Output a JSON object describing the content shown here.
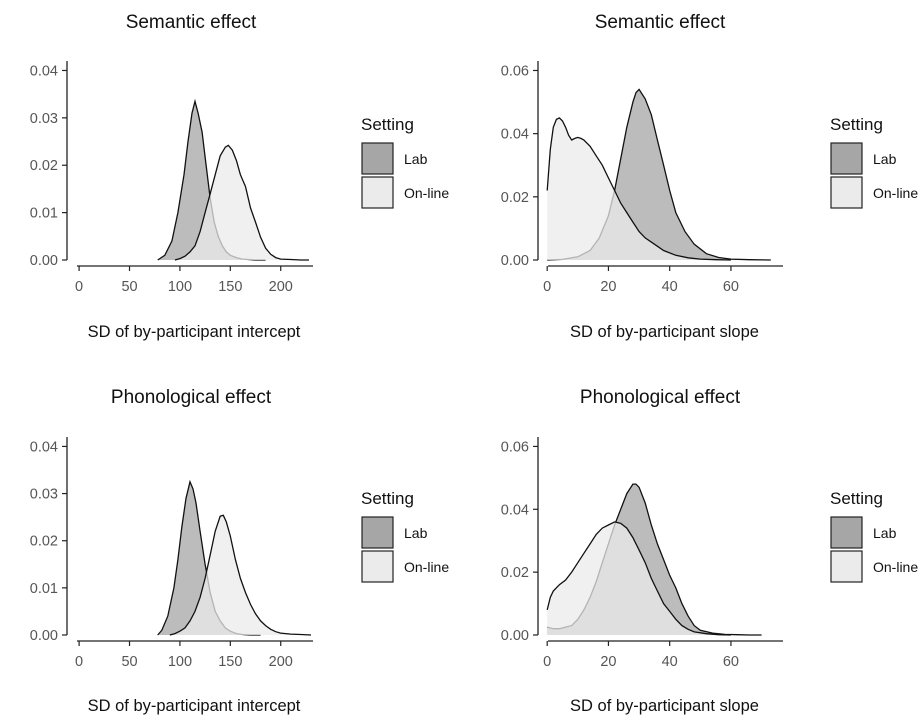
{
  "chart_data": [
    {
      "type": "area",
      "title": "Semantic effect",
      "xlabel": "SD of by-participant intercept",
      "ylabel": "",
      "xlim": [
        -12,
        232
      ],
      "ylim": [
        0,
        0.042
      ],
      "xticks": [
        0,
        50,
        100,
        150,
        200
      ],
      "yticks": [
        0,
        0.01,
        0.02,
        0.03,
        0.04
      ],
      "ytick_labels": [
        "0.00",
        "0.01",
        "0.02",
        "0.03",
        "0.04"
      ],
      "legend": {
        "title": "Setting",
        "placement": "right"
      },
      "series": [
        {
          "name": "Lab",
          "color": "#a6a6a6",
          "x": [
            78,
            85,
            92,
            98,
            104,
            108,
            112,
            115,
            118,
            122,
            126,
            130,
            134,
            138,
            142,
            146,
            150,
            156,
            162,
            168,
            175,
            185
          ],
          "y": [
            0.0,
            0.001,
            0.004,
            0.01,
            0.018,
            0.025,
            0.031,
            0.0335,
            0.031,
            0.027,
            0.02,
            0.013,
            0.008,
            0.005,
            0.003,
            0.0017,
            0.001,
            0.0005,
            0.0002,
            0.0001,
            0.0,
            0.0
          ]
        },
        {
          "name": "On-line",
          "color": "#ebebeb",
          "x": [
            95,
            100,
            105,
            110,
            115,
            120,
            125,
            130,
            135,
            140,
            145,
            148,
            152,
            156,
            160,
            165,
            170,
            175,
            180,
            185,
            190,
            195,
            200,
            210,
            220,
            228
          ],
          "y": [
            0.0,
            0.0003,
            0.0008,
            0.0017,
            0.003,
            0.006,
            0.01,
            0.014,
            0.018,
            0.022,
            0.0238,
            0.0242,
            0.0232,
            0.021,
            0.018,
            0.0155,
            0.011,
            0.008,
            0.0048,
            0.0025,
            0.0012,
            0.0005,
            0.0002,
            0.0001,
            0.0,
            0.0
          ]
        }
      ]
    },
    {
      "type": "area",
      "title": "Semantic effect",
      "xlabel": "SD of by-participant slope",
      "ylabel": "",
      "xlim": [
        -3,
        77
      ],
      "ylim": [
        0,
        0.063
      ],
      "xticks": [
        0,
        20,
        40,
        60
      ],
      "yticks": [
        0,
        0.02,
        0.04,
        0.06
      ],
      "ytick_labels": [
        "0.00",
        "0.02",
        "0.04",
        "0.06"
      ],
      "legend": {
        "title": "Setting",
        "placement": "right"
      },
      "series": [
        {
          "name": "Lab",
          "color": "#a6a6a6",
          "x": [
            0,
            5,
            10,
            14,
            17,
            20,
            22,
            24,
            26,
            28,
            29,
            30,
            32,
            34,
            36,
            38,
            40,
            42,
            45,
            48,
            52,
            56,
            60,
            66,
            73
          ],
          "y": [
            0.0,
            0.0002,
            0.001,
            0.003,
            0.007,
            0.014,
            0.022,
            0.032,
            0.042,
            0.05,
            0.053,
            0.054,
            0.051,
            0.046,
            0.038,
            0.03,
            0.022,
            0.015,
            0.009,
            0.005,
            0.002,
            0.0008,
            0.0003,
            0.0001,
            0.0
          ]
        },
        {
          "name": "On-line",
          "color": "#ebebeb",
          "x": [
            0,
            1,
            2,
            3,
            4,
            5,
            6,
            7,
            8,
            9,
            10,
            11,
            12,
            14,
            16,
            18,
            20,
            22,
            24,
            26,
            28,
            30,
            32,
            35,
            38,
            42,
            46,
            50,
            55,
            60
          ],
          "y": [
            0.022,
            0.035,
            0.042,
            0.0445,
            0.045,
            0.044,
            0.042,
            0.0395,
            0.038,
            0.0385,
            0.0388,
            0.0385,
            0.038,
            0.036,
            0.033,
            0.03,
            0.026,
            0.022,
            0.018,
            0.015,
            0.012,
            0.009,
            0.007,
            0.005,
            0.003,
            0.0015,
            0.0007,
            0.0003,
            0.0001,
            0.0
          ]
        }
      ]
    },
    {
      "type": "area",
      "title": "Phonological effect",
      "xlabel": "SD of by-participant intercept",
      "ylabel": "",
      "xlim": [
        -12,
        232
      ],
      "ylim": [
        0,
        0.042
      ],
      "xticks": [
        0,
        50,
        100,
        150,
        200
      ],
      "yticks": [
        0,
        0.01,
        0.02,
        0.03,
        0.04
      ],
      "ytick_labels": [
        "0.00",
        "0.01",
        "0.02",
        "0.03",
        "0.04"
      ],
      "legend": {
        "title": "Setting",
        "placement": "right"
      },
      "series": [
        {
          "name": "Lab",
          "color": "#a6a6a6",
          "x": [
            78,
            82,
            88,
            94,
            98,
            102,
            106,
            110,
            113,
            116,
            120,
            125,
            130,
            135,
            140,
            145,
            150,
            156,
            162,
            170,
            180
          ],
          "y": [
            0.0,
            0.001,
            0.004,
            0.01,
            0.016,
            0.023,
            0.029,
            0.0325,
            0.031,
            0.028,
            0.022,
            0.015,
            0.009,
            0.005,
            0.003,
            0.0015,
            0.0008,
            0.0003,
            0.0001,
            0.0,
            0.0
          ]
        },
        {
          "name": "On-line",
          "color": "#ebebeb",
          "x": [
            90,
            95,
            100,
            105,
            110,
            115,
            120,
            125,
            130,
            135,
            140,
            143,
            146,
            150,
            155,
            160,
            165,
            170,
            175,
            180,
            185,
            190,
            195,
            200,
            210,
            220,
            230
          ],
          "y": [
            0.0,
            0.0003,
            0.0008,
            0.0015,
            0.003,
            0.005,
            0.008,
            0.012,
            0.017,
            0.022,
            0.0252,
            0.0254,
            0.024,
            0.021,
            0.016,
            0.012,
            0.009,
            0.0065,
            0.0045,
            0.003,
            0.002,
            0.0012,
            0.0007,
            0.0004,
            0.0002,
            0.0001,
            0.0
          ]
        }
      ]
    },
    {
      "type": "area",
      "title": "Phonological effect",
      "xlabel": "SD of by-participant slope",
      "ylabel": "",
      "xlim": [
        -3,
        77
      ],
      "ylim": [
        0,
        0.063
      ],
      "xticks": [
        0,
        20,
        40,
        60
      ],
      "yticks": [
        0,
        0.02,
        0.04,
        0.06
      ],
      "ytick_labels": [
        "0.00",
        "0.02",
        "0.04",
        "0.06"
      ],
      "legend": {
        "title": "Setting",
        "placement": "right"
      },
      "series": [
        {
          "name": "Lab",
          "color": "#a6a6a6",
          "x": [
            0,
            2,
            4,
            6,
            8,
            10,
            12,
            14,
            16,
            18,
            20,
            22,
            24,
            26,
            28,
            29,
            30,
            32,
            34,
            36,
            38,
            40,
            42,
            44,
            46,
            48,
            50,
            54,
            58,
            62,
            66,
            70
          ],
          "y": [
            0.0025,
            0.002,
            0.002,
            0.0025,
            0.003,
            0.005,
            0.008,
            0.012,
            0.017,
            0.023,
            0.029,
            0.035,
            0.04,
            0.045,
            0.048,
            0.048,
            0.047,
            0.042,
            0.035,
            0.029,
            0.024,
            0.019,
            0.015,
            0.01,
            0.006,
            0.003,
            0.0015,
            0.0006,
            0.0002,
            0.0001,
            0.0,
            0.0
          ]
        },
        {
          "name": "On-line",
          "color": "#ebebeb",
          "x": [
            0,
            1,
            2,
            4,
            6,
            8,
            10,
            12,
            14,
            16,
            18,
            20,
            22,
            24,
            26,
            28,
            30,
            32,
            34,
            36,
            38,
            40,
            42,
            44,
            46,
            48,
            52,
            56,
            60
          ],
          "y": [
            0.008,
            0.012,
            0.014,
            0.016,
            0.0175,
            0.02,
            0.023,
            0.026,
            0.029,
            0.032,
            0.034,
            0.035,
            0.036,
            0.0355,
            0.034,
            0.031,
            0.027,
            0.023,
            0.018,
            0.014,
            0.01,
            0.0075,
            0.005,
            0.003,
            0.0018,
            0.001,
            0.0004,
            0.0001,
            0.0
          ]
        }
      ]
    }
  ]
}
